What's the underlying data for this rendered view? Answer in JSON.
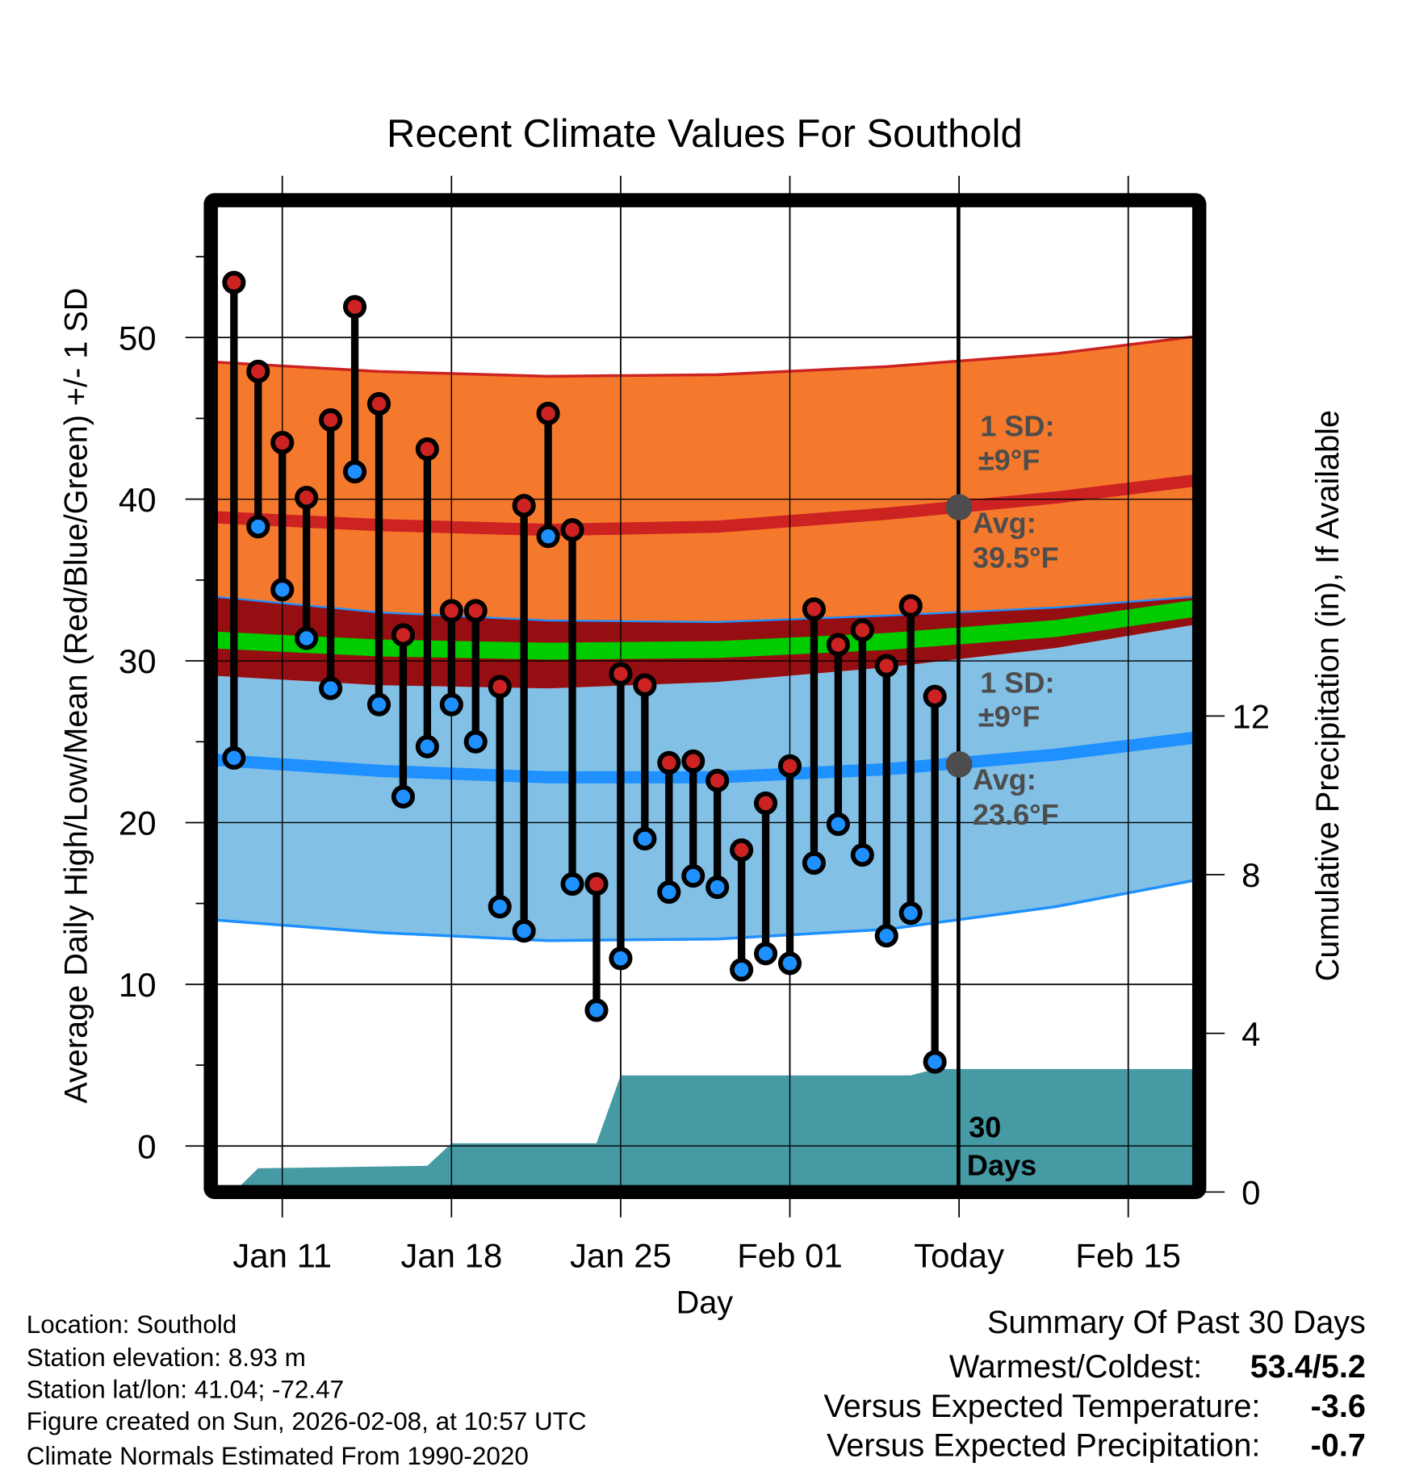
{
  "chart_data": {
    "type": "line",
    "title": "Recent Climate Values For Southold",
    "xlabel": "Day",
    "ylabel": "Average Daily High/Low/Mean (Red/Blue/Green) +/- 1 SD",
    "y2label": "Cumulative Precipitation (in), If Available",
    "ylim": [
      -2.4,
      58
    ],
    "y2lim": [
      0,
      24
    ],
    "yticks": [
      "0",
      "10",
      "20",
      "30",
      "40",
      "50"
    ],
    "yticks_values": [
      0,
      10,
      20,
      30,
      40,
      50
    ],
    "y2ticks": [
      "0",
      "4",
      "8",
      "12"
    ],
    "y2ticks_values": [
      0,
      4,
      8,
      12
    ],
    "xticks": [
      "Jan 11",
      "Jan 18",
      "Jan 25",
      "Feb 01",
      "Today",
      "Feb 15"
    ],
    "xticks_dates": [
      "Jan 11",
      "Jan 18",
      "Jan 25",
      "Feb 01",
      "Feb 08",
      "Feb 15"
    ],
    "xlim": [
      "Jan 08",
      "Feb 18"
    ],
    "grid": true,
    "colors": {
      "high": "#cc2222",
      "low": "#1e90ff",
      "mean": "#00cc00",
      "high_band": "#f5792c",
      "low_band": "#82c0e6",
      "overlap": "#950e12",
      "precip": "#459aa3",
      "today_marker": "#4d4d4d"
    },
    "daily": {
      "dates": [
        "Jan 09",
        "Jan 10",
        "Jan 11",
        "Jan 12",
        "Jan 13",
        "Jan 14",
        "Jan 15",
        "Jan 16",
        "Jan 17",
        "Jan 18",
        "Jan 19",
        "Jan 20",
        "Jan 21",
        "Jan 22",
        "Jan 23",
        "Jan 24",
        "Jan 25",
        "Jan 26",
        "Jan 27",
        "Jan 28",
        "Jan 29",
        "Jan 30",
        "Jan 31",
        "Feb 01",
        "Feb 02",
        "Feb 03",
        "Feb 04",
        "Feb 05",
        "Feb 06",
        "Feb 07"
      ],
      "high": [
        53.4,
        47.9,
        43.5,
        40.1,
        44.9,
        51.9,
        45.9,
        31.6,
        43.1,
        33.1,
        33.1,
        28.4,
        39.6,
        45.3,
        38.1,
        16.2,
        29.2,
        28.5,
        23.7,
        23.8,
        22.6,
        18.3,
        21.2,
        23.5,
        33.2,
        31.0,
        31.9,
        29.7,
        33.4,
        27.8
      ],
      "low": [
        24.0,
        38.3,
        34.4,
        31.4,
        28.3,
        41.7,
        27.3,
        21.6,
        24.7,
        27.3,
        25.0,
        14.8,
        13.3,
        37.7,
        16.2,
        8.4,
        11.6,
        19.0,
        15.7,
        16.7,
        16.0,
        10.9,
        11.9,
        11.3,
        17.5,
        19.9,
        18.0,
        13.0,
        14.4,
        5.2
      ]
    },
    "normals": {
      "dates": [
        "Jan 08",
        "Jan 15",
        "Jan 22",
        "Jan 29",
        "Feb 05",
        "Feb 12",
        "Feb 18"
      ],
      "high_plus_sd": [
        48.5,
        47.9,
        47.6,
        47.7,
        48.2,
        49.0,
        50.1
      ],
      "avg_high": [
        38.9,
        38.4,
        38.1,
        38.3,
        39.1,
        40.1,
        41.2
      ],
      "low_plus_sd": [
        34.0,
        33.0,
        32.5,
        32.4,
        32.8,
        33.3,
        34.0
      ],
      "mean": [
        31.3,
        30.8,
        30.6,
        30.7,
        31.2,
        32.0,
        33.3
      ],
      "high_minus_sd": [
        29.1,
        28.5,
        28.3,
        28.7,
        29.6,
        30.8,
        32.3
      ],
      "avg_low": [
        23.9,
        23.2,
        22.8,
        22.8,
        23.3,
        24.2,
        25.3
      ],
      "low_minus_sd": [
        14.0,
        13.2,
        12.7,
        12.8,
        13.4,
        14.8,
        16.5
      ]
    },
    "precip": {
      "dates": [
        "Jan 09",
        "Jan 10",
        "Jan 17",
        "Jan 18",
        "Jan 24",
        "Jan 25",
        "Feb 06",
        "Feb 07",
        "Feb 18"
      ],
      "cumulative": [
        0,
        0.6,
        0.66,
        1.23,
        1.23,
        2.94,
        2.94,
        3.1,
        3.1
      ]
    },
    "today": {
      "date": "Feb 08",
      "avg_high": 39.5,
      "avg_low": 23.6
    },
    "annotations": {
      "high_sd_1": "1 SD:",
      "high_sd_2": "±9°F",
      "high_avg_1": "Avg:",
      "high_avg_2": "39.5°F",
      "low_sd_1": "1 SD:",
      "low_sd_2": "±9°F",
      "low_avg_1": "Avg:",
      "low_avg_2": "23.6°F",
      "days_1": "30",
      "days_2": "Days"
    }
  },
  "info": {
    "location": "Location: Southold",
    "elevation": "Station elevation: 8.93 m",
    "latlon": "Station lat/lon: 41.04; -72.47",
    "created": "Figure created on Sun, 2026-02-08, at 10:57 UTC",
    "normals": "Climate Normals Estimated From 1990-2020"
  },
  "summary": {
    "title": "Summary Of Past 30 Days",
    "warm_cold_label": "Warmest/Coldest:",
    "warm_cold_value": "53.4/5.2",
    "temp_label": "Versus Expected Temperature:",
    "temp_value": "-3.6",
    "temp_color": "#1e90ff",
    "precip_label": "Versus Expected Precipitation:",
    "precip_value": "-0.7",
    "precip_color": "#a0522d"
  }
}
